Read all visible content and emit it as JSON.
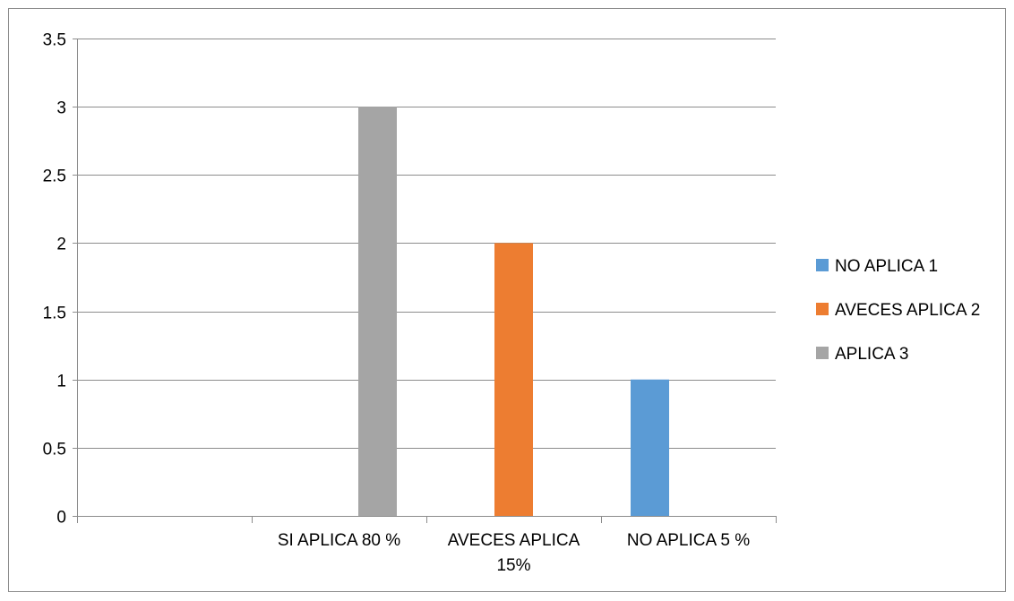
{
  "chart_data": {
    "type": "bar",
    "title": "",
    "xlabel": "",
    "ylabel": "",
    "categories": [
      "",
      "SI APLICA 80 %",
      "AVECES APLICA 15%",
      "NO APLICA 5 %"
    ],
    "category_label_lines": [
      [
        ""
      ],
      [
        "SI APLICA 80 %"
      ],
      [
        "AVECES APLICA",
        "15%"
      ],
      [
        "NO APLICA 5 %"
      ]
    ],
    "series": [
      {
        "name": "NO APLICA 1",
        "color": "#5B9BD5",
        "values": [
          null,
          null,
          null,
          1
        ]
      },
      {
        "name": "AVECES APLICA 2",
        "color": "#ED7D31",
        "values": [
          null,
          null,
          2,
          null
        ]
      },
      {
        "name": "APLICA 3",
        "color": "#A5A5A5",
        "values": [
          null,
          3,
          null,
          null
        ]
      }
    ],
    "ylim": [
      0,
      3.5
    ],
    "yticks": [
      "0",
      "0.5",
      "1",
      "1.5",
      "2",
      "2.5",
      "3",
      "3.5"
    ],
    "grid": true,
    "legend_position": "right"
  }
}
